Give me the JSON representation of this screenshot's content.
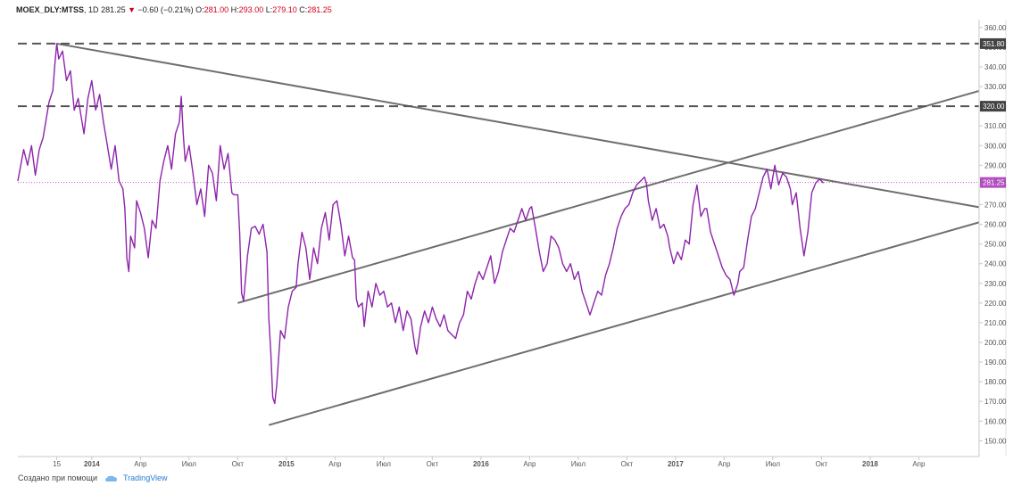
{
  "header": {
    "symbol": "MOEX_DLY:MTSS",
    "interval": "1D",
    "last": "281.25",
    "arrow": "▼",
    "change": "−0.60 (−0.21%)",
    "o_label": "O:",
    "o_value": "281.00",
    "h_label": "H:",
    "h_value": "293.00",
    "l_label": "L:",
    "l_value": "279.10",
    "c_label": "C:",
    "c_value": "281.25"
  },
  "footer": {
    "text": "Создано при помощи",
    "brand": "TradingView",
    "logo_icon": "tradingview-cloud-icon"
  },
  "colors": {
    "price_line": "#8e24aa",
    "trend_line": "#6e6e6e",
    "level_line": "#555555",
    "last_price_line": "#c060c0",
    "axis_text": "#555555"
  },
  "chart_data": {
    "type": "line",
    "x_unit": "years",
    "xlim": [
      2013.62,
      2018.56
    ],
    "ylim": [
      142,
      364
    ],
    "grid": false,
    "price_axis_ticks": [
      "150.00",
      "160.00",
      "170.00",
      "180.00",
      "190.00",
      "200.00",
      "210.00",
      "220.00",
      "230.00",
      "240.00",
      "250.00",
      "260.00",
      "270.00",
      "280.00",
      "290.00",
      "300.00",
      "310.00",
      "320.00",
      "330.00",
      "340.00",
      "350.00",
      "360.00"
    ],
    "time_axis_ticks": [
      {
        "x": 2013.82,
        "label": "15"
      },
      {
        "x": 2014.0,
        "label": "2014"
      },
      {
        "x": 2014.25,
        "label": "Апр"
      },
      {
        "x": 2014.5,
        "label": "Июл"
      },
      {
        "x": 2014.75,
        "label": "Окт"
      },
      {
        "x": 2015.0,
        "label": "2015"
      },
      {
        "x": 2015.25,
        "label": "Апр"
      },
      {
        "x": 2015.5,
        "label": "Июл"
      },
      {
        "x": 2015.75,
        "label": "Окт"
      },
      {
        "x": 2016.0,
        "label": "2016"
      },
      {
        "x": 2016.25,
        "label": "Апр"
      },
      {
        "x": 2016.5,
        "label": "Июл"
      },
      {
        "x": 2016.75,
        "label": "Окт"
      },
      {
        "x": 2017.0,
        "label": "2017"
      },
      {
        "x": 2017.25,
        "label": "Апр"
      },
      {
        "x": 2017.5,
        "label": "Июл"
      },
      {
        "x": 2017.75,
        "label": "Окт"
      },
      {
        "x": 2018.0,
        "label": "2018"
      },
      {
        "x": 2018.25,
        "label": "Апр"
      }
    ],
    "series": [
      {
        "points": [
          [
            2013.62,
            282
          ],
          [
            2013.65,
            298
          ],
          [
            2013.67,
            290
          ],
          [
            2013.69,
            300
          ],
          [
            2013.71,
            285
          ],
          [
            2013.73,
            298
          ],
          [
            2013.75,
            304
          ],
          [
            2013.77,
            316
          ],
          [
            2013.78,
            322
          ],
          [
            2013.8,
            328
          ],
          [
            2013.81,
            341
          ],
          [
            2013.82,
            351.8
          ],
          [
            2013.83,
            344
          ],
          [
            2013.85,
            348
          ],
          [
            2013.87,
            333
          ],
          [
            2013.89,
            338
          ],
          [
            2013.91,
            318
          ],
          [
            2013.93,
            324
          ],
          [
            2013.95,
            312
          ],
          [
            2013.96,
            306
          ],
          [
            2013.98,
            324
          ],
          [
            2014.0,
            333
          ],
          [
            2014.02,
            318
          ],
          [
            2014.04,
            326
          ],
          [
            2014.06,
            312
          ],
          [
            2014.08,
            300
          ],
          [
            2014.1,
            288
          ],
          [
            2014.12,
            300
          ],
          [
            2014.14,
            282
          ],
          [
            2014.16,
            278
          ],
          [
            2014.17,
            268
          ],
          [
            2014.18,
            243
          ],
          [
            2014.19,
            236
          ],
          [
            2014.2,
            254
          ],
          [
            2014.22,
            248
          ],
          [
            2014.23,
            272
          ],
          [
            2014.25,
            266
          ],
          [
            2014.27,
            258
          ],
          [
            2014.29,
            243
          ],
          [
            2014.31,
            262
          ],
          [
            2014.33,
            258
          ],
          [
            2014.35,
            282
          ],
          [
            2014.37,
            292
          ],
          [
            2014.39,
            300
          ],
          [
            2014.41,
            288
          ],
          [
            2014.43,
            306
          ],
          [
            2014.45,
            312
          ],
          [
            2014.46,
            325
          ],
          [
            2014.47,
            306
          ],
          [
            2014.48,
            292
          ],
          [
            2014.5,
            300
          ],
          [
            2014.52,
            286
          ],
          [
            2014.54,
            270
          ],
          [
            2014.56,
            278
          ],
          [
            2014.58,
            264
          ],
          [
            2014.6,
            290
          ],
          [
            2014.62,
            286
          ],
          [
            2014.64,
            272
          ],
          [
            2014.66,
            300
          ],
          [
            2014.68,
            288
          ],
          [
            2014.7,
            296
          ],
          [
            2014.72,
            276
          ],
          [
            2014.73,
            275
          ],
          [
            2014.75,
            275
          ],
          [
            2014.76,
            256
          ],
          [
            2014.77,
            225
          ],
          [
            2014.78,
            221
          ],
          [
            2014.8,
            244
          ],
          [
            2014.82,
            258
          ],
          [
            2014.84,
            259
          ],
          [
            2014.86,
            255
          ],
          [
            2014.88,
            260
          ],
          [
            2014.9,
            246
          ],
          [
            2014.91,
            212
          ],
          [
            2014.92,
            195
          ],
          [
            2014.93,
            172
          ],
          [
            2014.94,
            169
          ],
          [
            2014.95,
            178
          ],
          [
            2014.97,
            206
          ],
          [
            2014.99,
            202
          ],
          [
            2015.01,
            218
          ],
          [
            2015.03,
            226
          ],
          [
            2015.05,
            228
          ],
          [
            2015.06,
            240
          ],
          [
            2015.08,
            256
          ],
          [
            2015.1,
            248
          ],
          [
            2015.12,
            232
          ],
          [
            2015.14,
            248
          ],
          [
            2015.16,
            240
          ],
          [
            2015.18,
            258
          ],
          [
            2015.2,
            266
          ],
          [
            2015.22,
            252
          ],
          [
            2015.24,
            270
          ],
          [
            2015.26,
            272
          ],
          [
            2015.28,
            260
          ],
          [
            2015.3,
            244
          ],
          [
            2015.32,
            254
          ],
          [
            2015.34,
            243
          ],
          [
            2015.35,
            242
          ],
          [
            2015.36,
            222
          ],
          [
            2015.37,
            218
          ],
          [
            2015.39,
            220
          ],
          [
            2015.4,
            208
          ],
          [
            2015.42,
            226
          ],
          [
            2015.44,
            218
          ],
          [
            2015.46,
            230
          ],
          [
            2015.48,
            224
          ],
          [
            2015.5,
            226
          ],
          [
            2015.52,
            218
          ],
          [
            2015.54,
            220
          ],
          [
            2015.56,
            210
          ],
          [
            2015.58,
            218
          ],
          [
            2015.6,
            206
          ],
          [
            2015.62,
            216
          ],
          [
            2015.64,
            212
          ],
          [
            2015.66,
            198
          ],
          [
            2015.67,
            194
          ],
          [
            2015.69,
            208
          ],
          [
            2015.71,
            216
          ],
          [
            2015.73,
            210
          ],
          [
            2015.75,
            218
          ],
          [
            2015.77,
            212
          ],
          [
            2015.79,
            208
          ],
          [
            2015.81,
            214
          ],
          [
            2015.83,
            206
          ],
          [
            2015.85,
            204
          ],
          [
            2015.87,
            202
          ],
          [
            2015.89,
            210
          ],
          [
            2015.91,
            214
          ],
          [
            2015.93,
            226
          ],
          [
            2015.95,
            222
          ],
          [
            2015.97,
            230
          ],
          [
            2015.99,
            236
          ],
          [
            2016.01,
            232
          ],
          [
            2016.03,
            238
          ],
          [
            2016.05,
            244
          ],
          [
            2016.07,
            230
          ],
          [
            2016.09,
            236
          ],
          [
            2016.11,
            246
          ],
          [
            2016.13,
            252
          ],
          [
            2016.15,
            258
          ],
          [
            2016.17,
            256
          ],
          [
            2016.19,
            262
          ],
          [
            2016.21,
            268
          ],
          [
            2016.23,
            262
          ],
          [
            2016.25,
            268
          ],
          [
            2016.26,
            269
          ],
          [
            2016.28,
            258
          ],
          [
            2016.3,
            246
          ],
          [
            2016.32,
            236
          ],
          [
            2016.34,
            240
          ],
          [
            2016.36,
            254
          ],
          [
            2016.38,
            252
          ],
          [
            2016.4,
            248
          ],
          [
            2016.42,
            240
          ],
          [
            2016.44,
            236
          ],
          [
            2016.46,
            240
          ],
          [
            2016.48,
            232
          ],
          [
            2016.5,
            236
          ],
          [
            2016.52,
            226
          ],
          [
            2016.54,
            220
          ],
          [
            2016.56,
            214
          ],
          [
            2016.58,
            220
          ],
          [
            2016.6,
            226
          ],
          [
            2016.62,
            224
          ],
          [
            2016.64,
            234
          ],
          [
            2016.66,
            240
          ],
          [
            2016.68,
            248
          ],
          [
            2016.7,
            258
          ],
          [
            2016.72,
            264
          ],
          [
            2016.74,
            268
          ],
          [
            2016.76,
            270
          ],
          [
            2016.78,
            276
          ],
          [
            2016.8,
            280
          ],
          [
            2016.82,
            282
          ],
          [
            2016.84,
            284
          ],
          [
            2016.85,
            281
          ],
          [
            2016.86,
            272
          ],
          [
            2016.88,
            262
          ],
          [
            2016.9,
            268
          ],
          [
            2016.92,
            258
          ],
          [
            2016.94,
            260
          ],
          [
            2016.96,
            254
          ],
          [
            2016.97,
            248
          ],
          [
            2016.99,
            240
          ],
          [
            2017.01,
            246
          ],
          [
            2017.03,
            242
          ],
          [
            2017.05,
            252
          ],
          [
            2017.07,
            250
          ],
          [
            2017.09,
            270
          ],
          [
            2017.11,
            280
          ],
          [
            2017.13,
            264
          ],
          [
            2017.15,
            268
          ],
          [
            2017.16,
            268
          ],
          [
            2017.18,
            256
          ],
          [
            2017.2,
            250
          ],
          [
            2017.22,
            244
          ],
          [
            2017.24,
            238
          ],
          [
            2017.26,
            234
          ],
          [
            2017.28,
            232
          ],
          [
            2017.3,
            224
          ],
          [
            2017.32,
            230
          ],
          [
            2017.33,
            236
          ],
          [
            2017.35,
            238
          ],
          [
            2017.37,
            252
          ],
          [
            2017.39,
            264
          ],
          [
            2017.41,
            268
          ],
          [
            2017.43,
            276
          ],
          [
            2017.45,
            284
          ],
          [
            2017.47,
            288
          ],
          [
            2017.49,
            278
          ],
          [
            2017.51,
            290
          ],
          [
            2017.53,
            280
          ],
          [
            2017.55,
            286
          ],
          [
            2017.57,
            284
          ],
          [
            2017.59,
            278
          ],
          [
            2017.6,
            270
          ],
          [
            2017.62,
            276
          ],
          [
            2017.64,
            258
          ],
          [
            2017.66,
            244
          ],
          [
            2017.68,
            256
          ],
          [
            2017.7,
            276
          ],
          [
            2017.72,
            281
          ],
          [
            2017.74,
            283
          ],
          [
            2017.76,
            281
          ]
        ]
      }
    ],
    "price_line_color": "#8e24aa",
    "horizontal_levels": [
      {
        "y": 351.8,
        "label": "351.80"
      },
      {
        "y": 320.0,
        "label": "320.00"
      }
    ],
    "last_price": {
      "y": 281.25,
      "label": "281.25"
    },
    "trend_lines": [
      {
        "x1": 2013.82,
        "y1": 351.8,
        "x2": 2018.56,
        "y2": 268.7
      },
      {
        "x1": 2014.75,
        "y1": 220.0,
        "x2": 2018.56,
        "y2": 327.8
      },
      {
        "x1": 2014.91,
        "y1": 158.0,
        "x2": 2018.56,
        "y2": 261.0
      }
    ]
  }
}
